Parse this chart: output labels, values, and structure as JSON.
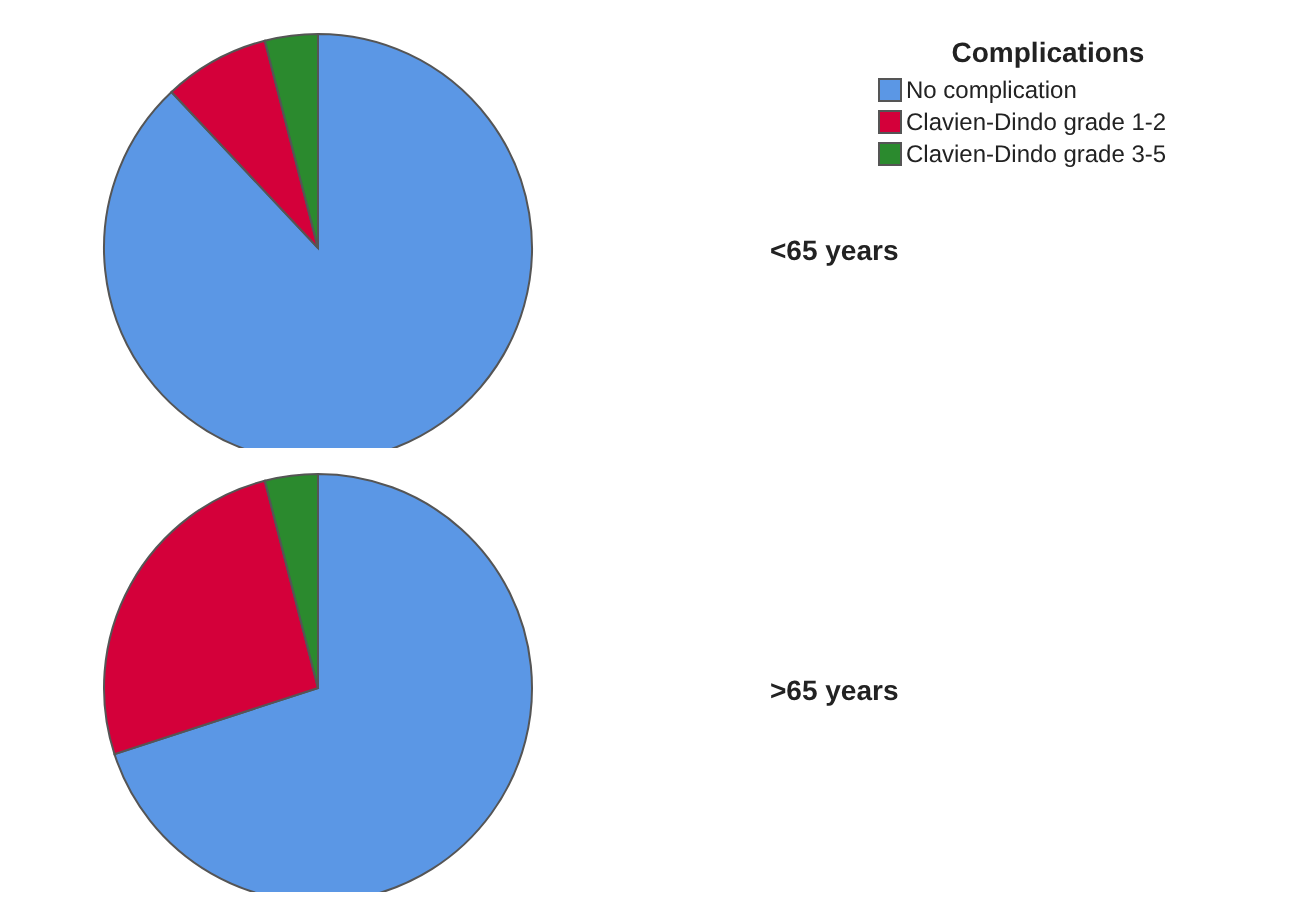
{
  "chart_data": [
    {
      "type": "pie",
      "title": "<65 years",
      "legend_title": "Complications",
      "legend": "top right",
      "categories": [
        "No complication",
        "Clavien-Dindo grade 1-2",
        "Clavien-Dindo grade 3-5"
      ],
      "values": [
        88,
        8,
        4
      ],
      "colors": [
        "#5b97e5",
        "#d4003a",
        "#2b8a2e"
      ]
    },
    {
      "type": "pie",
      "title": ">65 years",
      "legend": false,
      "categories": [
        null,
        null,
        null
      ],
      "values": [
        70,
        26,
        4
      ],
      "colors": [
        "#5b97e5",
        "#d4003a",
        "#2b8a2e"
      ]
    }
  ]
}
